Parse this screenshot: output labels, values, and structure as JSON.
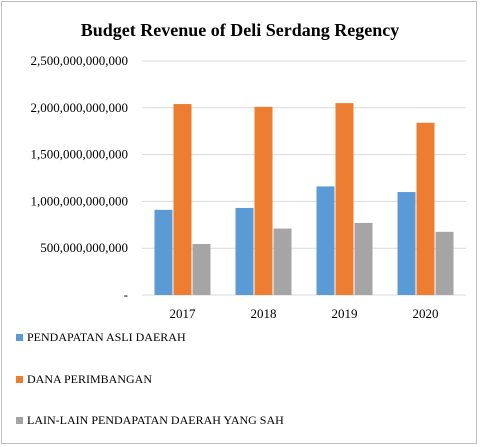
{
  "chart_data": {
    "type": "bar",
    "title": "Budget Revenue of Deli Serdang Regency",
    "categories": [
      "2017",
      "2018",
      "2019",
      "2020"
    ],
    "series": [
      {
        "name": "PENDAPATAN ASLI DAERAH",
        "color": "#5b9bd5",
        "values": [
          910000000000,
          930000000000,
          1160000000000,
          1100000000000
        ]
      },
      {
        "name": "DANA PERIMBANGAN",
        "color": "#ed7d31",
        "values": [
          2040000000000,
          2010000000000,
          2050000000000,
          1840000000000
        ]
      },
      {
        "name": "LAIN-LAIN PENDAPATAN DAERAH YANG SAH",
        "color": "#a5a5a5",
        "values": [
          545000000000,
          710000000000,
          770000000000,
          675000000000
        ]
      }
    ],
    "ylim": [
      0,
      2500000000000
    ],
    "yticks": [
      0,
      500000000000,
      1000000000000,
      1500000000000,
      2000000000000,
      2500000000000
    ],
    "ytick_labels": [
      "-",
      "500,000,000,000",
      "1,000,000,000,000",
      "1,500,000,000,000",
      "2,000,000,000,000",
      "2,500,000,000,000"
    ],
    "grid": true,
    "legend_position": "bottom-left"
  }
}
